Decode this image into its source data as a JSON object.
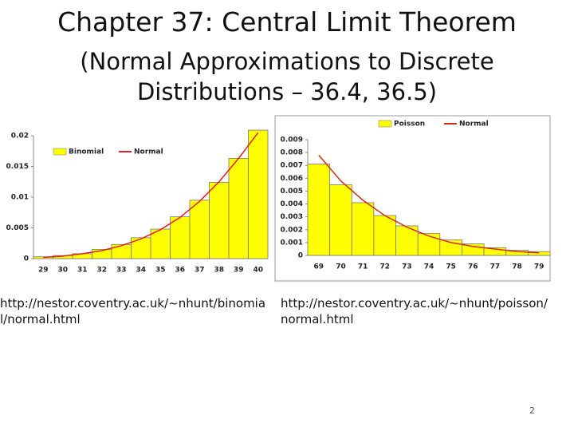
{
  "title": "Chapter 37: Central Limit Theorem",
  "subtitle": "(Normal Approximations to Discrete Distributions – 36.4, 36.5)",
  "links": [
    "http://nestor.coventry.ac.uk/~nhunt/binomial/normal.html",
    "http://nestor.coventry.ac.uk/~nhunt/poisson/normal.html"
  ],
  "page_number": "2",
  "chart_data": [
    {
      "type": "bar",
      "categories": [
        "29",
        "30",
        "31",
        "32",
        "33",
        "34",
        "35",
        "36",
        "37",
        "38",
        "39",
        "40"
      ],
      "series": [
        {
          "name": "Binomial",
          "type": "bar",
          "color": "#ffff00",
          "values": [
            0.0003,
            0.0005,
            0.0008,
            0.0015,
            0.0023,
            0.0034,
            0.0048,
            0.0068,
            0.0095,
            0.0124,
            0.0163,
            0.0209
          ]
        },
        {
          "name": "Normal",
          "type": "line",
          "color": "#e02020",
          "values": [
            0.0002,
            0.0004,
            0.0008,
            0.0013,
            0.0021,
            0.0032,
            0.0047,
            0.0067,
            0.0093,
            0.0125,
            0.0163,
            0.0205
          ]
        }
      ],
      "ylim": [
        0,
        0.02
      ],
      "yticks": [
        0,
        0.005,
        0.01,
        0.015,
        0.02
      ],
      "legend": "upper-left"
    },
    {
      "type": "bar",
      "categories": [
        "69",
        "70",
        "71",
        "72",
        "73",
        "74",
        "75",
        "76",
        "77",
        "78",
        "79"
      ],
      "series": [
        {
          "name": "Poisson",
          "type": "bar",
          "color": "#ffff00",
          "values": [
            0.0071,
            0.0055,
            0.0041,
            0.0031,
            0.0023,
            0.0017,
            0.0012,
            0.0009,
            0.0006,
            0.0004,
            0.0003
          ]
        },
        {
          "name": "Normal",
          "type": "line",
          "color": "#d03010",
          "values": [
            0.0078,
            0.0058,
            0.0043,
            0.0031,
            0.0022,
            0.0015,
            0.001,
            0.0007,
            0.0005,
            0.0003,
            0.0002
          ]
        }
      ],
      "ylim": [
        0,
        0.009
      ],
      "yticks": [
        0,
        0.001,
        0.002,
        0.003,
        0.004,
        0.005,
        0.006,
        0.007,
        0.008,
        0.009
      ],
      "legend": "top"
    }
  ]
}
